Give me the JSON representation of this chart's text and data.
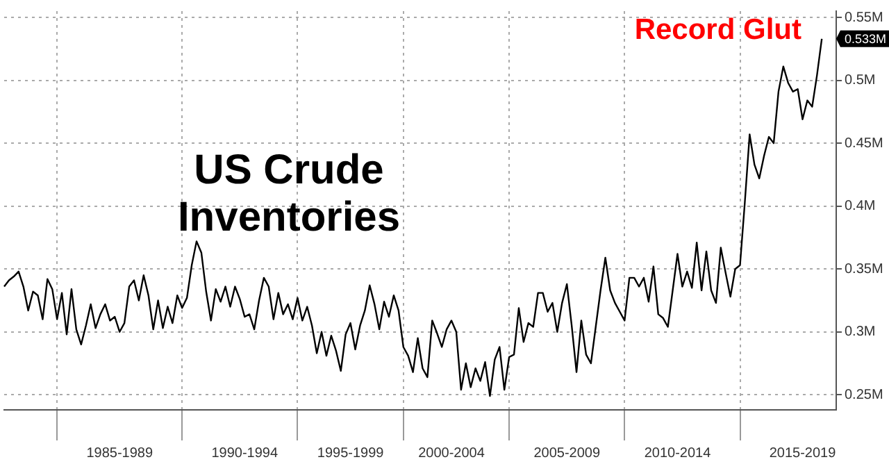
{
  "chart_data": {
    "type": "line",
    "title": "US Crude Inventories",
    "annotations": [
      "Record Glut",
      {
        "text": "0.533M",
        "y": 0.533
      }
    ],
    "categories": [
      null,
      null,
      null,
      null,
      null,
      null,
      null,
      null,
      null,
      null,
      null,
      null,
      null,
      null,
      null,
      null,
      null,
      null,
      null,
      null,
      null,
      null,
      null,
      null,
      "1985-1989",
      null,
      null,
      null,
      null,
      null,
      null,
      null,
      null,
      null,
      null,
      null,
      null,
      null,
      null,
      null,
      null,
      null,
      null,
      null,
      null,
      null,
      null,
      null,
      null,
      null,
      "1990-1994",
      null,
      null,
      null,
      null,
      null,
      null,
      null,
      null,
      null,
      null,
      null,
      null,
      null,
      null,
      null,
      null,
      null,
      null,
      null,
      null,
      null,
      "1995-1999",
      null,
      null,
      null,
      null,
      null,
      null,
      null,
      null,
      null,
      null,
      null,
      null,
      null,
      null,
      null,
      null,
      null,
      null,
      null,
      null,
      "2000-2004",
      null,
      null,
      null,
      null,
      null,
      null,
      null,
      null,
      null,
      null,
      null,
      null,
      null,
      null,
      null,
      null,
      null,
      null,
      null,
      null,
      null,
      null,
      null,
      "2005-2009",
      null,
      null,
      null,
      null,
      null,
      null,
      null,
      null,
      null,
      null,
      null,
      null,
      null,
      null,
      null,
      null,
      null,
      null,
      null,
      null,
      null,
      null,
      "2010-2014",
      null,
      null,
      null,
      null,
      null,
      null,
      null,
      null,
      null,
      null,
      null,
      null,
      null,
      null,
      null,
      null,
      null,
      null,
      null,
      null,
      null,
      null,
      null,
      null,
      null,
      "2015-2019",
      null,
      null,
      null,
      null,
      null,
      null,
      null
    ],
    "series": [
      {
        "color": "#000000",
        "values": [
          0.336,
          0.341,
          0.344,
          0.348,
          0.336,
          0.317,
          0.332,
          0.329,
          0.31,
          0.342,
          0.334,
          0.31,
          0.331,
          0.298,
          0.334,
          0.302,
          0.29,
          0.305,
          0.322,
          0.303,
          0.314,
          0.322,
          0.309,
          0.312,
          0.3,
          0.307,
          0.336,
          0.341,
          0.325,
          0.345,
          0.329,
          0.302,
          0.325,
          0.303,
          0.32,
          0.307,
          0.329,
          0.319,
          0.327,
          0.353,
          0.372,
          0.363,
          0.332,
          0.309,
          0.334,
          0.324,
          0.336,
          0.32,
          0.336,
          0.326,
          0.312,
          0.314,
          0.302,
          0.325,
          0.343,
          0.336,
          0.31,
          0.331,
          0.314,
          0.322,
          0.31,
          0.327,
          0.309,
          0.32,
          0.305,
          0.283,
          0.3,
          0.281,
          0.297,
          0.285,
          0.269,
          0.298,
          0.307,
          0.286,
          0.305,
          0.317,
          0.337,
          0.322,
          0.302,
          0.324,
          0.312,
          0.329,
          0.317,
          0.288,
          0.281,
          0.268,
          0.295,
          0.271,
          0.264,
          0.309,
          0.299,
          0.288,
          0.302,
          0.309,
          0.3,
          0.254,
          0.275,
          0.256,
          0.271,
          0.261,
          0.276,
          0.249,
          0.278,
          0.288,
          0.254,
          0.28,
          0.282,
          0.319,
          0.292,
          0.307,
          0.304,
          0.331,
          0.331,
          0.316,
          0.323,
          0.3,
          0.323,
          0.338,
          0.305,
          0.268,
          0.309,
          0.282,
          0.275,
          0.304,
          0.333,
          0.359,
          0.333,
          0.323,
          0.316,
          0.309,
          0.343,
          0.343,
          0.336,
          0.343,
          0.324,
          0.352,
          0.314,
          0.311,
          0.304,
          0.333,
          0.362,
          0.336,
          0.348,
          0.335,
          0.371,
          0.333,
          0.364,
          0.333,
          0.323,
          0.367,
          0.347,
          0.328,
          0.35,
          0.353,
          0.403,
          0.457,
          0.433,
          0.422,
          0.44,
          0.455,
          0.45,
          0.491,
          0.511,
          0.498,
          0.491,
          0.493,
          0.469,
          0.484,
          0.479,
          0.504,
          0.533,
          null,
          null,
          null
        ]
      }
    ],
    "ylim": [
      0.238,
      0.555
    ],
    "yticks": [
      {
        "value": 0.25,
        "label": "0.25M"
      },
      {
        "value": 0.3,
        "label": "0.3M"
      },
      {
        "value": 0.35,
        "label": "0.35M"
      },
      {
        "value": 0.4,
        "label": "0.4M"
      },
      {
        "value": 0.45,
        "label": "0.45M"
      },
      {
        "value": 0.5,
        "label": "0.5M"
      },
      {
        "value": 0.55,
        "label": "0.55M"
      }
    ],
    "grid": true
  }
}
